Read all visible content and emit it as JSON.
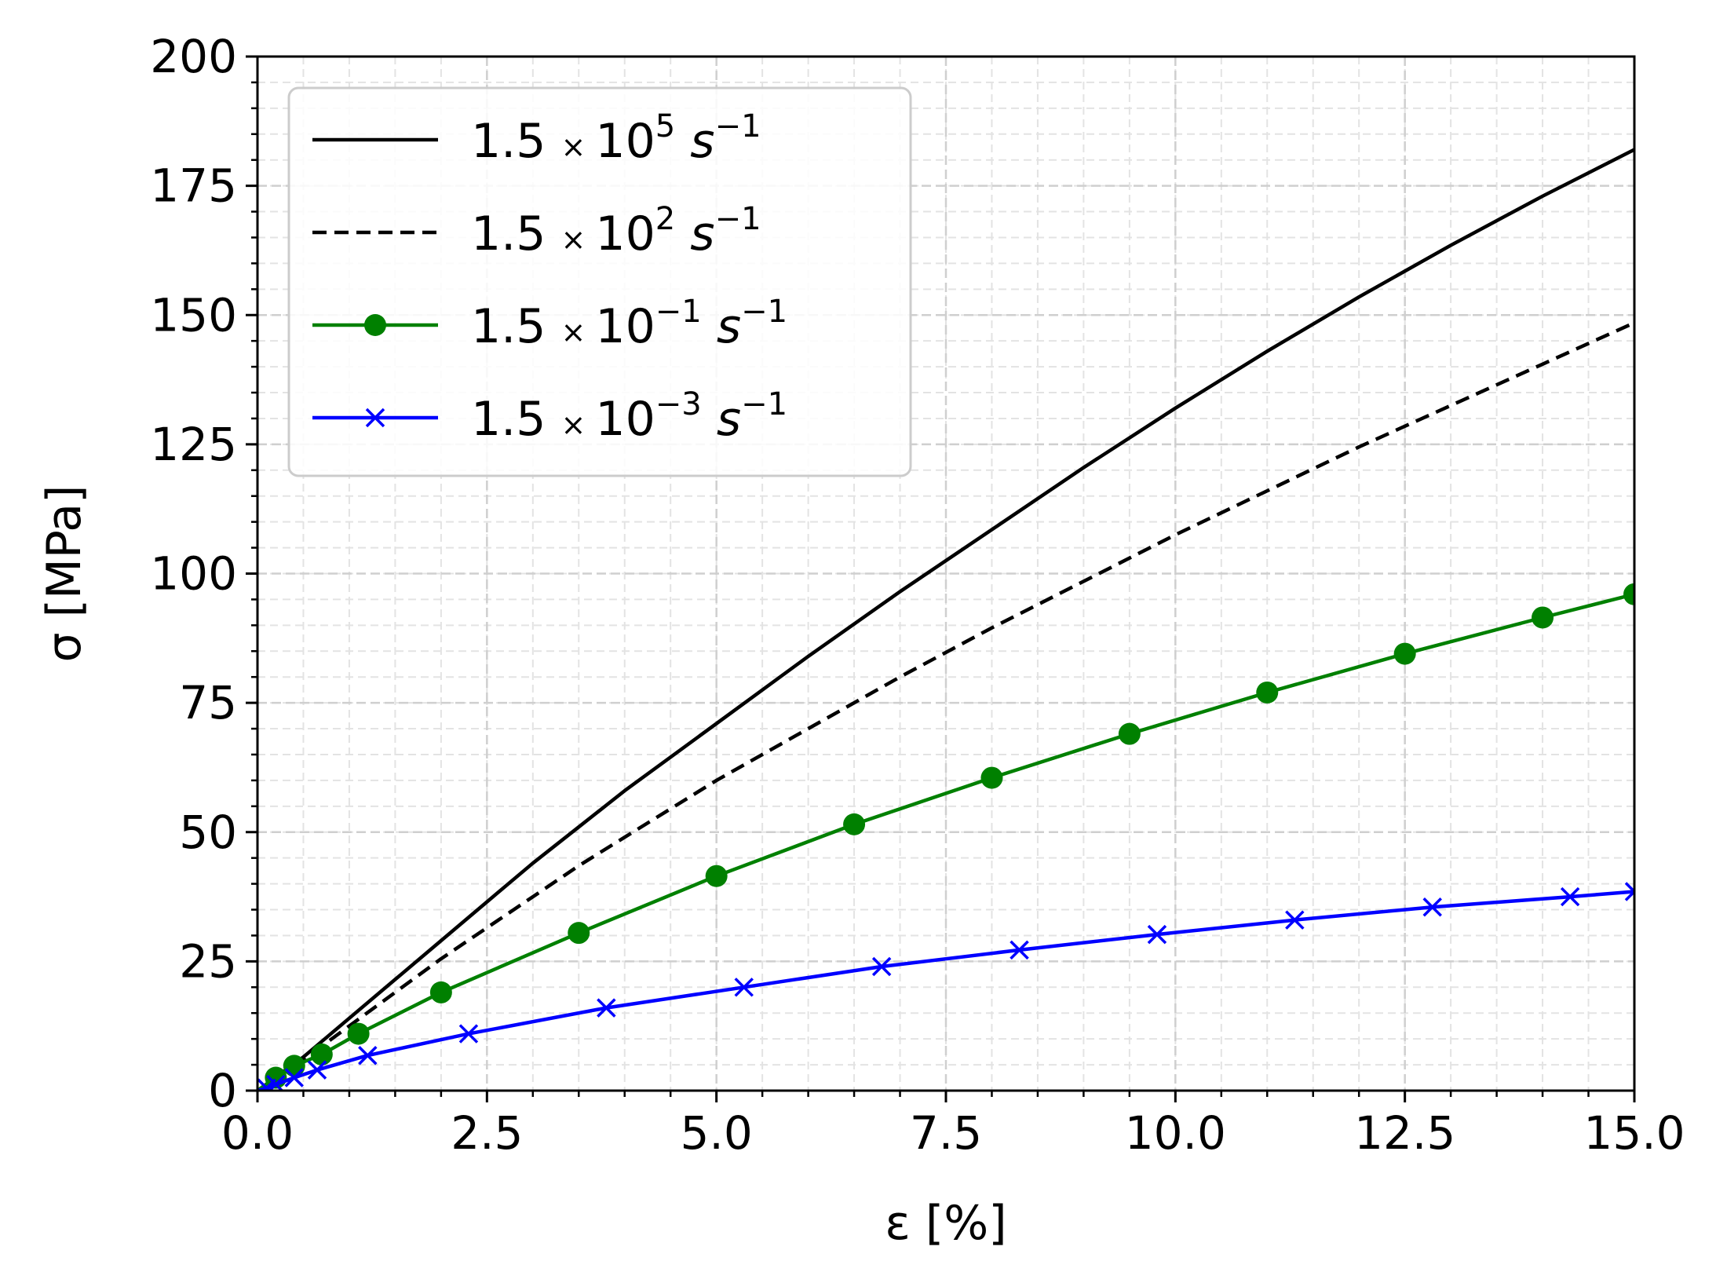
{
  "chart_data": {
    "type": "line",
    "title": "",
    "xlabel": "ε [%]",
    "ylabel": "σ [MPa]",
    "xlim": [
      0,
      15
    ],
    "ylim": [
      0,
      200
    ],
    "x_ticks": [
      0,
      2.5,
      5,
      7.5,
      10,
      12.5,
      15
    ],
    "x_tick_labels": [
      "0.0",
      "2.5",
      "5.0",
      "7.5",
      "10.0",
      "12.5",
      "15.0"
    ],
    "y_ticks": [
      0,
      25,
      50,
      75,
      100,
      125,
      150,
      175,
      200
    ],
    "y_tick_labels": [
      "0",
      "25",
      "50",
      "75",
      "100",
      "125",
      "150",
      "175",
      "200"
    ],
    "grid": true,
    "minor_grid": true,
    "legend_position": "upper-left",
    "series": [
      {
        "name": "1.5 × 10^5 s^-1",
        "legend": {
          "mantissa": "1.5",
          "times": "×",
          "base": "10",
          "exp": "5",
          "unit": "s",
          "unit_exp": "−1"
        },
        "color": "#000000",
        "style": "solid",
        "marker": "none",
        "x": [
          0,
          0.5,
          1,
          1.5,
          2,
          2.5,
          3,
          3.5,
          4,
          4.5,
          5,
          6,
          7,
          8,
          9,
          10,
          11,
          12,
          13,
          14,
          15
        ],
        "y": [
          0,
          6.5,
          14,
          21.5,
          29,
          36.5,
          44,
          51,
          58,
          64.5,
          71,
          84,
          96.5,
          108.5,
          120.5,
          132,
          143,
          153.5,
          163.5,
          173,
          182
        ]
      },
      {
        "name": "1.5 × 10^2 s^-1",
        "legend": {
          "mantissa": "1.5",
          "times": "×",
          "base": "10",
          "exp": "2",
          "unit": "s",
          "unit_exp": "−1"
        },
        "color": "#000000",
        "style": "dashed",
        "marker": "none",
        "x": [
          0,
          0.5,
          1,
          1.5,
          2,
          2.5,
          3,
          3.5,
          4,
          4.5,
          5,
          6,
          7,
          8,
          9,
          10,
          11,
          12,
          13,
          14,
          15
        ],
        "y": [
          0,
          6,
          12.5,
          19,
          25.5,
          31.5,
          37.5,
          43.5,
          49,
          54.5,
          60,
          70,
          80,
          89.5,
          98.5,
          107.5,
          116,
          124.5,
          132.5,
          140.5,
          148.5
        ]
      },
      {
        "name": "1.5 × 10^-1 s^-1",
        "legend": {
          "mantissa": "1.5",
          "times": "×",
          "base": "10",
          "exp": "−1",
          "unit": "s",
          "unit_exp": "−1"
        },
        "color": "#008000",
        "style": "solid",
        "marker": "circle",
        "x": [
          0,
          0.2,
          0.4,
          0.7,
          1.1,
          2,
          3.5,
          5,
          6.5,
          8,
          9.5,
          11,
          12.5,
          14,
          15
        ],
        "y": [
          0,
          2.5,
          4.8,
          7,
          11,
          19,
          30.5,
          41.5,
          51.5,
          60.5,
          69,
          77,
          84.5,
          91.5,
          96
        ]
      },
      {
        "name": "1.5 × 10^-3 s^-1",
        "legend": {
          "mantissa": "1.5",
          "times": "×",
          "base": "10",
          "exp": "−3",
          "unit": "s",
          "unit_exp": "−1"
        },
        "color": "#0000ff",
        "style": "solid",
        "marker": "x",
        "x": [
          0,
          0.1,
          0.2,
          0.4,
          0.65,
          1.2,
          2.3,
          3.8,
          5.3,
          6.8,
          8.3,
          9.8,
          11.3,
          12.8,
          14.3,
          15
        ],
        "y": [
          0,
          0.5,
          1.2,
          2.5,
          4,
          6.8,
          11,
          16,
          20,
          24,
          27.2,
          30.2,
          33,
          35.5,
          37.5,
          38.5
        ]
      }
    ]
  }
}
